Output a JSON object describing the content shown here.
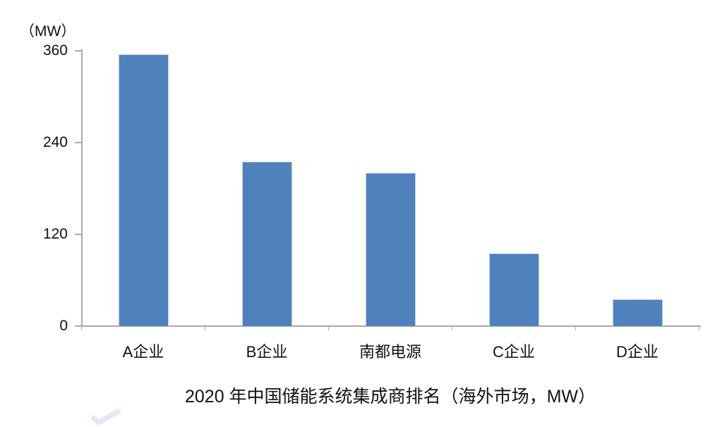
{
  "page": {
    "background_color": "#ffffff",
    "text_color": "#111111",
    "axis_color": "#a8a8a8"
  },
  "chart_data": {
    "type": "bar",
    "title": "2020 年中国储能系统集成商排名（海外市场，MW）",
    "unit_label": "（MW）",
    "categories": [
      "A企业",
      "B企业",
      "南都电源",
      "C企业",
      "D企业"
    ],
    "values": [
      355,
      215,
      200,
      95,
      35
    ],
    "xlabel": "",
    "ylabel": "MW",
    "ylim": [
      0,
      360
    ],
    "yticks": [
      0,
      120,
      240,
      360
    ],
    "bar_color": "#4f81bd",
    "grid": false,
    "legend_position": "none",
    "title_position": "bottom"
  }
}
